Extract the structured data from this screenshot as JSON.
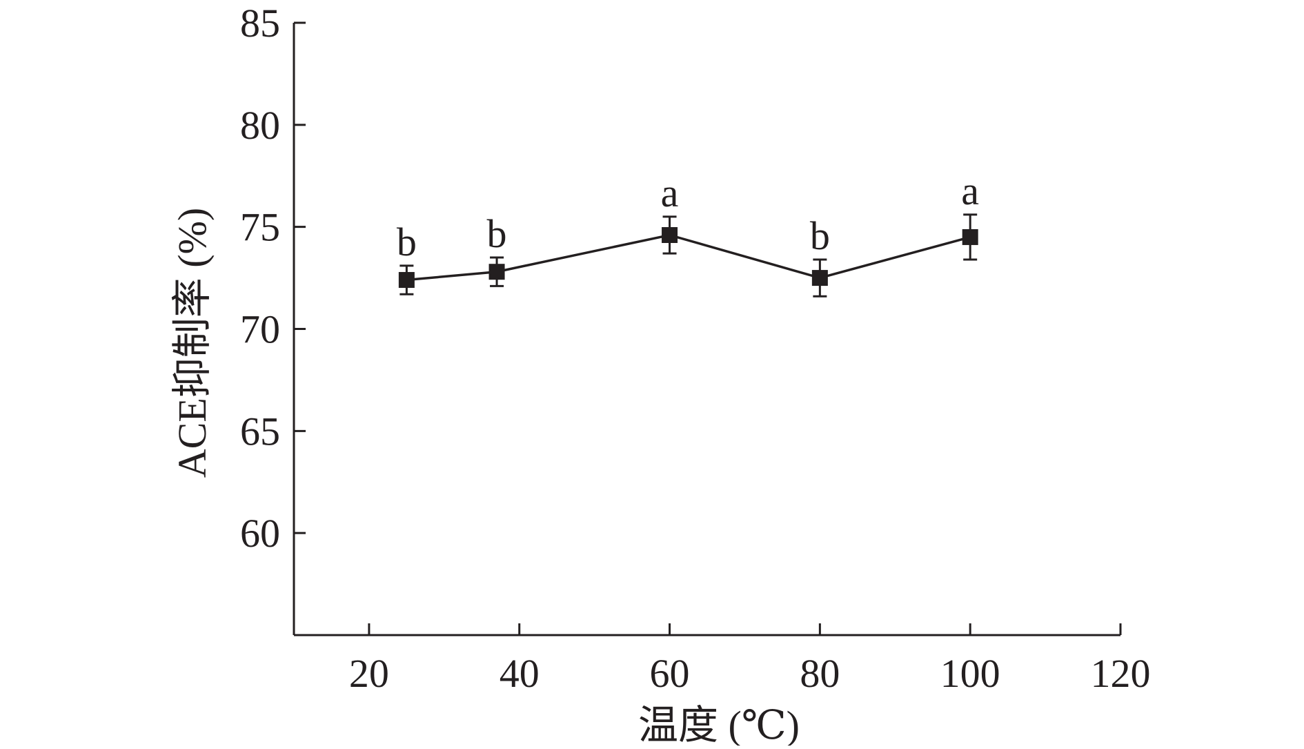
{
  "chart_data": {
    "type": "line",
    "title": "",
    "xlabel": "温度 (℃)",
    "ylabel": "ACE抑制率 (%)",
    "xlim": [
      10,
      120
    ],
    "ylim": [
      55,
      85
    ],
    "xticks": [
      20,
      40,
      60,
      80,
      100,
      120
    ],
    "yticks": [
      60,
      65,
      70,
      75,
      80,
      85
    ],
    "grid": false,
    "legend": "none",
    "colors": {
      "line": "#231f20",
      "axis": "#231f20"
    },
    "series": [
      {
        "x": [
          25,
          37,
          60,
          80,
          100
        ],
        "y": [
          72.4,
          72.8,
          74.6,
          72.5,
          74.5
        ],
        "error": [
          0.7,
          0.7,
          0.9,
          0.9,
          1.1
        ],
        "labels": [
          "b",
          "b",
          "a",
          "b",
          "a"
        ]
      }
    ]
  }
}
